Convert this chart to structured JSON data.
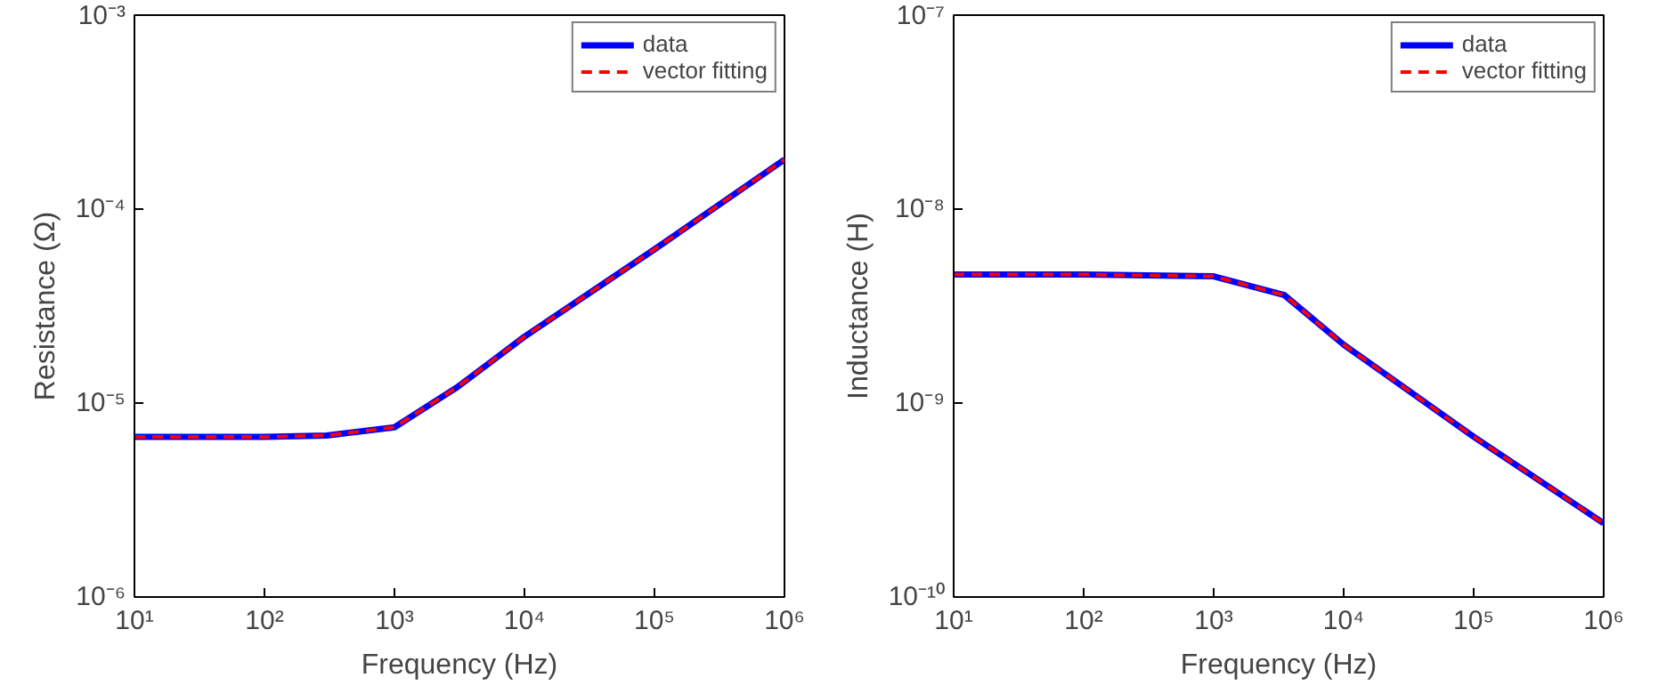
{
  "chart_data": [
    {
      "type": "line",
      "xlabel": "Frequency (Hz)",
      "ylabel": "Resistance (Ω)",
      "log": "xy",
      "grid": false,
      "legend": "top right",
      "x": [
        10,
        100,
        300,
        1000,
        3000,
        6000,
        10000,
        100000,
        1000000
      ],
      "series": [
        {
          "name": "data",
          "color": "#0000ff",
          "line_style": "solid",
          "values": [
            6.7e-06,
            6.7e-06,
            6.8e-06,
            7.5e-06,
            1.2e-05,
            1.7e-05,
            2.2e-05,
            6.2e-05,
            0.00018
          ]
        },
        {
          "name": "vector fitting",
          "color": "#ff0000",
          "line_style": "dashed",
          "values": [
            6.7e-06,
            6.7e-06,
            6.8e-06,
            7.5e-06,
            1.2e-05,
            1.7e-05,
            2.2e-05,
            6.2e-05,
            0.00018
          ]
        }
      ],
      "xlim": [
        10,
        1000000
      ],
      "ylim": [
        1e-06,
        0.001
      ],
      "xticks": [
        {
          "value": 10,
          "label": "10¹"
        },
        {
          "value": 100,
          "label": "10²"
        },
        {
          "value": 1000,
          "label": "10³"
        },
        {
          "value": 10000,
          "label": "10⁴"
        },
        {
          "value": 100000,
          "label": "10⁵"
        },
        {
          "value": 1000000,
          "label": "10⁶"
        }
      ],
      "yticks": [
        {
          "value": 1e-06,
          "label": "10⁻⁶"
        },
        {
          "value": 1e-05,
          "label": "10⁻⁵"
        },
        {
          "value": 0.0001,
          "label": "10⁻⁴"
        },
        {
          "value": 0.001,
          "label": "10⁻³"
        }
      ]
    },
    {
      "type": "line",
      "xlabel": "Frequency (Hz)",
      "ylabel": "Inductance (H)",
      "log": "xy",
      "grid": false,
      "legend": "top right",
      "x": [
        10,
        100,
        1000,
        3500,
        10000,
        100000,
        1000000
      ],
      "series": [
        {
          "name": "data",
          "color": "#0000ff",
          "line_style": "solid",
          "values": [
            4.6e-09,
            4.6e-09,
            4.5e-09,
            3.6e-09,
            2e-09,
            6.7e-10,
            2.4e-10
          ]
        },
        {
          "name": "vector fitting",
          "color": "#ff0000",
          "line_style": "dashed",
          "values": [
            4.6e-09,
            4.6e-09,
            4.5e-09,
            3.6e-09,
            2e-09,
            6.7e-10,
            2.4e-10
          ]
        }
      ],
      "xlim": [
        10,
        1000000
      ],
      "ylim": [
        1e-10,
        1e-07
      ],
      "xticks": [
        {
          "value": 10,
          "label": "10¹"
        },
        {
          "value": 100,
          "label": "10²"
        },
        {
          "value": 1000,
          "label": "10³"
        },
        {
          "value": 10000,
          "label": "10⁴"
        },
        {
          "value": 100000,
          "label": "10⁵"
        },
        {
          "value": 1000000,
          "label": "10⁶"
        }
      ],
      "yticks": [
        {
          "value": 1e-10,
          "label": "10⁻¹⁰"
        },
        {
          "value": 1e-09,
          "label": "10⁻⁹"
        },
        {
          "value": 1e-08,
          "label": "10⁻⁸"
        },
        {
          "value": 1e-07,
          "label": "10⁻⁷"
        }
      ]
    }
  ]
}
